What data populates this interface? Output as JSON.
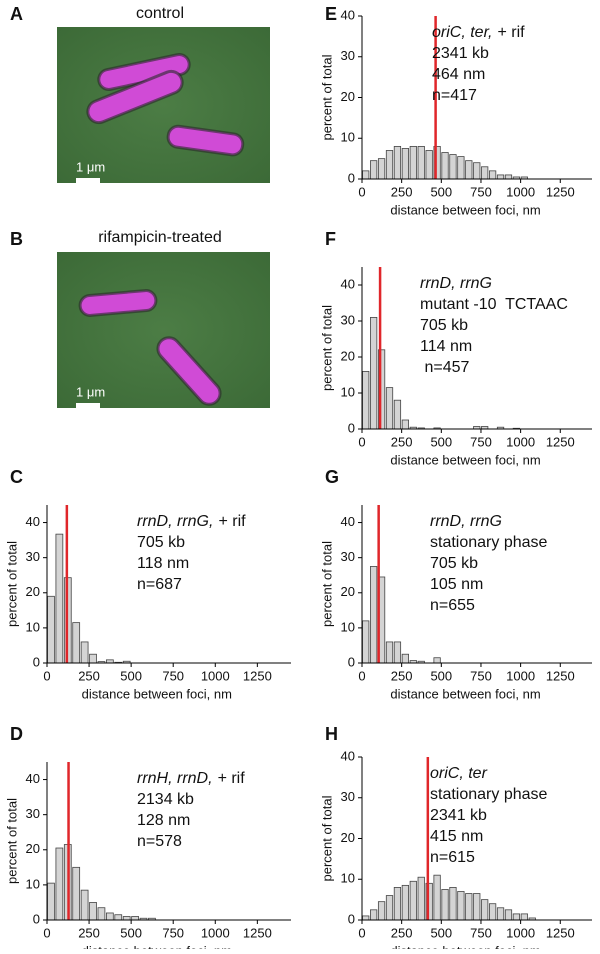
{
  "images": [
    {
      "panel": "A",
      "title": "control",
      "scale_bar": "1 μm"
    },
    {
      "panel": "B",
      "title": "rifampicin-treated",
      "scale_bar": "1 μm"
    }
  ],
  "chart_data": [
    {
      "type": "histogram",
      "panel": "C",
      "genes": "rrnD, rrnG,",
      "condition": "+ rif",
      "annotations": [
        "705 kb",
        "118 nm",
        "n=687"
      ],
      "xlabel": "distance between foci, nm",
      "ylabel": "percent of total",
      "color": "#d4d4d4",
      "line_value": 118,
      "line_color": "#e0262a",
      "bins": [
        0,
        50,
        100,
        150,
        200,
        250,
        300,
        350,
        400,
        450,
        500,
        550,
        600,
        650,
        700,
        750,
        800,
        850,
        900,
        950,
        1000,
        1050,
        1100
      ],
      "values": [
        19,
        36.7,
        24.3,
        11.5,
        6,
        2.5,
        0.4,
        0.9,
        0.2,
        0.5,
        0,
        0,
        0,
        0,
        0,
        0,
        0,
        0,
        0,
        0,
        0,
        0
      ],
      "xlim": [
        0,
        1450
      ],
      "ylim": [
        0,
        45
      ],
      "xticks": [
        0,
        250,
        500,
        750,
        1000,
        1250
      ],
      "yticks": [
        0,
        10,
        20,
        30,
        40
      ]
    },
    {
      "type": "histogram",
      "panel": "D",
      "genes": "rrnH, rrnD,",
      "condition": "+ rif",
      "annotations": [
        "2134 kb",
        "128 nm",
        "n=578"
      ],
      "xlabel": "distance between foci, nm",
      "ylabel": "percent of total",
      "color": "#d4d4d4",
      "line_value": 128,
      "line_color": "#e0262a",
      "bins": [
        0,
        50,
        100,
        150,
        200,
        250,
        300,
        350,
        400,
        450,
        500,
        550,
        600,
        650,
        700,
        750,
        800,
        850,
        900,
        950,
        1000,
        1050,
        1100
      ],
      "values": [
        10.5,
        20.5,
        21.5,
        15,
        8.5,
        5,
        3.5,
        2,
        1.5,
        1,
        1,
        0.5,
        0.5,
        0,
        0,
        0,
        0,
        0,
        0,
        0,
        0,
        0
      ],
      "xlim": [
        0,
        1450
      ],
      "ylim": [
        0,
        45
      ],
      "xticks": [
        0,
        250,
        500,
        750,
        1000,
        1250
      ],
      "yticks": [
        0,
        10,
        20,
        30,
        40
      ]
    },
    {
      "type": "histogram",
      "panel": "E",
      "genes": "oriC, ter,",
      "condition": "+ rif",
      "annotations": [
        "2341 kb",
        "464 nm",
        "n=417"
      ],
      "xlabel": "distance between foci, nm",
      "ylabel": "percent of total",
      "color": "#d4d4d4",
      "line_value": 464,
      "line_color": "#e0262a",
      "bins": [
        0,
        50,
        100,
        150,
        200,
        250,
        300,
        350,
        400,
        450,
        500,
        550,
        600,
        650,
        700,
        750,
        800,
        850,
        900,
        950,
        1000,
        1050,
        1100
      ],
      "values": [
        2,
        4.5,
        5,
        7,
        8,
        7.5,
        8,
        8,
        7,
        8,
        6.5,
        6,
        5.5,
        4.5,
        4,
        3,
        2,
        1,
        1,
        0.5,
        0.5,
        0
      ],
      "xlim": [
        0,
        1450
      ],
      "ylim": [
        0,
        40
      ],
      "xticks": [
        0,
        250,
        500,
        750,
        1000,
        1250
      ],
      "yticks": [
        0,
        10,
        20,
        30,
        40
      ]
    },
    {
      "type": "histogram",
      "panel": "F",
      "genes": "rrnD, rrnG",
      "annotations": [
        "mutant -10  TCTAAC",
        "705 kb",
        "114 nm",
        " n=457"
      ],
      "xlabel": "distance between foci, nm",
      "ylabel": "percent of total",
      "color": "#d4d4d4",
      "line_value": 114,
      "line_color": "#e0262a",
      "bins": [
        0,
        50,
        100,
        150,
        200,
        250,
        300,
        350,
        400,
        450,
        500,
        550,
        600,
        650,
        700,
        750,
        800,
        850,
        900,
        950,
        1000,
        1050,
        1100
      ],
      "values": [
        16,
        31,
        22,
        11.5,
        8,
        2.5,
        0.5,
        0.3,
        0,
        0.3,
        0,
        0,
        0,
        0,
        0.7,
        0.7,
        0,
        0.5,
        0,
        0.2,
        0,
        0
      ],
      "xlim": [
        0,
        1450
      ],
      "ylim": [
        0,
        45
      ],
      "xticks": [
        0,
        250,
        500,
        750,
        1000,
        1250
      ],
      "yticks": [
        0,
        10,
        20,
        30,
        40
      ]
    },
    {
      "type": "histogram",
      "panel": "G",
      "genes": "rrnD, rrnG",
      "annotations": [
        "stationary phase",
        "705 kb",
        "105 nm",
        "n=655"
      ],
      "xlabel": "distance between foci, nm",
      "ylabel": "percent of total",
      "color": "#d4d4d4",
      "line_value": 105,
      "line_color": "#e0262a",
      "bins": [
        0,
        50,
        100,
        150,
        200,
        250,
        300,
        350,
        400,
        450,
        500,
        550,
        600,
        650,
        700,
        750,
        800,
        850,
        900,
        950,
        1000,
        1050,
        1100
      ],
      "values": [
        12,
        27.5,
        24.5,
        6,
        6,
        2.5,
        0.7,
        0.5,
        0,
        1.5,
        0,
        0,
        0,
        0,
        0,
        0,
        0,
        0,
        0,
        0,
        0,
        0
      ],
      "xlim": [
        0,
        1450
      ],
      "ylim": [
        0,
        45
      ],
      "xticks": [
        0,
        250,
        500,
        750,
        1000,
        1250
      ],
      "yticks": [
        0,
        10,
        20,
        30,
        40
      ]
    },
    {
      "type": "histogram",
      "panel": "H",
      "genes": "oriC, ter",
      "annotations": [
        "stationary phase",
        "2341 kb",
        "415 nm",
        "n=615"
      ],
      "xlabel": "distance between foci, nm",
      "ylabel": "percent of total",
      "color": "#d4d4d4",
      "line_value": 415,
      "line_color": "#e0262a",
      "bins": [
        0,
        50,
        100,
        150,
        200,
        250,
        300,
        350,
        400,
        450,
        500,
        550,
        600,
        650,
        700,
        750,
        800,
        850,
        900,
        950,
        1000,
        1050,
        1100
      ],
      "values": [
        1,
        2.5,
        4.5,
        6,
        8,
        8.5,
        9.5,
        10.5,
        9,
        11,
        7.5,
        8,
        7,
        6.5,
        6.5,
        5,
        4,
        3,
        2.5,
        1.5,
        1.5,
        0.5
      ],
      "xlim": [
        0,
        1450
      ],
      "ylim": [
        0,
        40
      ],
      "xticks": [
        0,
        250,
        500,
        750,
        1000,
        1250
      ],
      "yticks": [
        0,
        10,
        20,
        30,
        40
      ]
    }
  ]
}
